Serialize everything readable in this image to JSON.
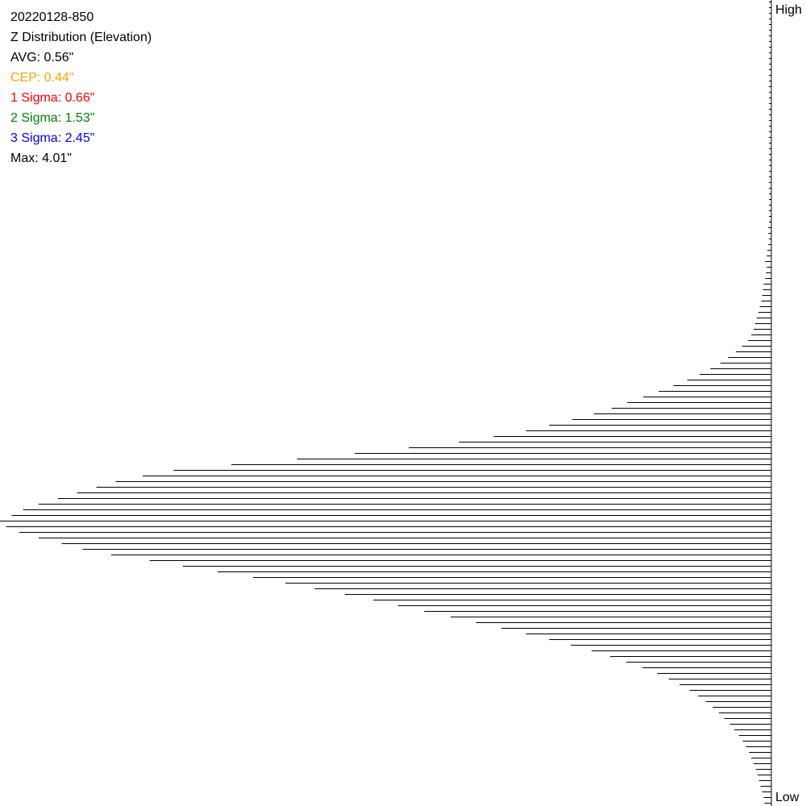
{
  "stats": {
    "id": "20220128-850",
    "title": "Z Distribution (Elevation)",
    "avg": "AVG: 0.56\"",
    "cep": "CEP: 0.44\"",
    "sigma1": "1 Sigma: 0.66\"",
    "sigma2": "2 Sigma: 1.53\"",
    "sigma3": "3 Sigma: 2.45\"",
    "max": "Max: 4.01\""
  },
  "colors": {
    "avg": "#000000",
    "cep": "#FFA500",
    "sigma1": "#FF0000",
    "sigma2": "#008000",
    "sigma3": "#0000FF",
    "max": "#000000",
    "bars": "#000000"
  },
  "axis": {
    "high_label": "High",
    "low_label": "Low"
  },
  "chart_data": {
    "type": "bar",
    "orientation": "horizontal",
    "direction": "left-pointing histogram, top = High, bottom = Low",
    "value_scale": "relative frequency, max = 1.0",
    "values": [
      0,
      0,
      0,
      0,
      0,
      0,
      0,
      0,
      0,
      0,
      0,
      0,
      0,
      0,
      0,
      0,
      0,
      0,
      0,
      0,
      0,
      0,
      0,
      0,
      0,
      0,
      0,
      0,
      0,
      0,
      0,
      0,
      0,
      0,
      0,
      0,
      0,
      0,
      0,
      0,
      0.004,
      0.004,
      0.003,
      0.004,
      0.005,
      0.006,
      0.008,
      0.006,
      0.007,
      0.008,
      0.01,
      0.011,
      0.012,
      0.013,
      0.015,
      0.017,
      0.019,
      0.021,
      0.023,
      0.026,
      0.03,
      0.038,
      0.046,
      0.056,
      0.066,
      0.079,
      0.093,
      0.109,
      0.127,
      0.146,
      0.166,
      0.187,
      0.207,
      0.23,
      0.258,
      0.288,
      0.318,
      0.36,
      0.405,
      0.47,
      0.54,
      0.615,
      0.7,
      0.775,
      0.815,
      0.85,
      0.875,
      0.9,
      0.925,
      0.95,
      0.97,
      0.985,
      1.0,
      0.992,
      0.975,
      0.95,
      0.92,
      0.893,
      0.856,
      0.806,
      0.763,
      0.718,
      0.672,
      0.63,
      0.592,
      0.553,
      0.516,
      0.484,
      0.45,
      0.416,
      0.383,
      0.35,
      0.318,
      0.288,
      0.26,
      0.233,
      0.209,
      0.188,
      0.167,
      0.148,
      0.133,
      0.119,
      0.106,
      0.095,
      0.085,
      0.076,
      0.068,
      0.061,
      0.054,
      0.048,
      0.042,
      0.037,
      0.033,
      0.029,
      0.026,
      0.023,
      0.02,
      0.018,
      0.016,
      0.014,
      0.012,
      0.01,
      0.009,
      0.008,
      0.006,
      0.005,
      0.004,
      0.003
    ]
  }
}
